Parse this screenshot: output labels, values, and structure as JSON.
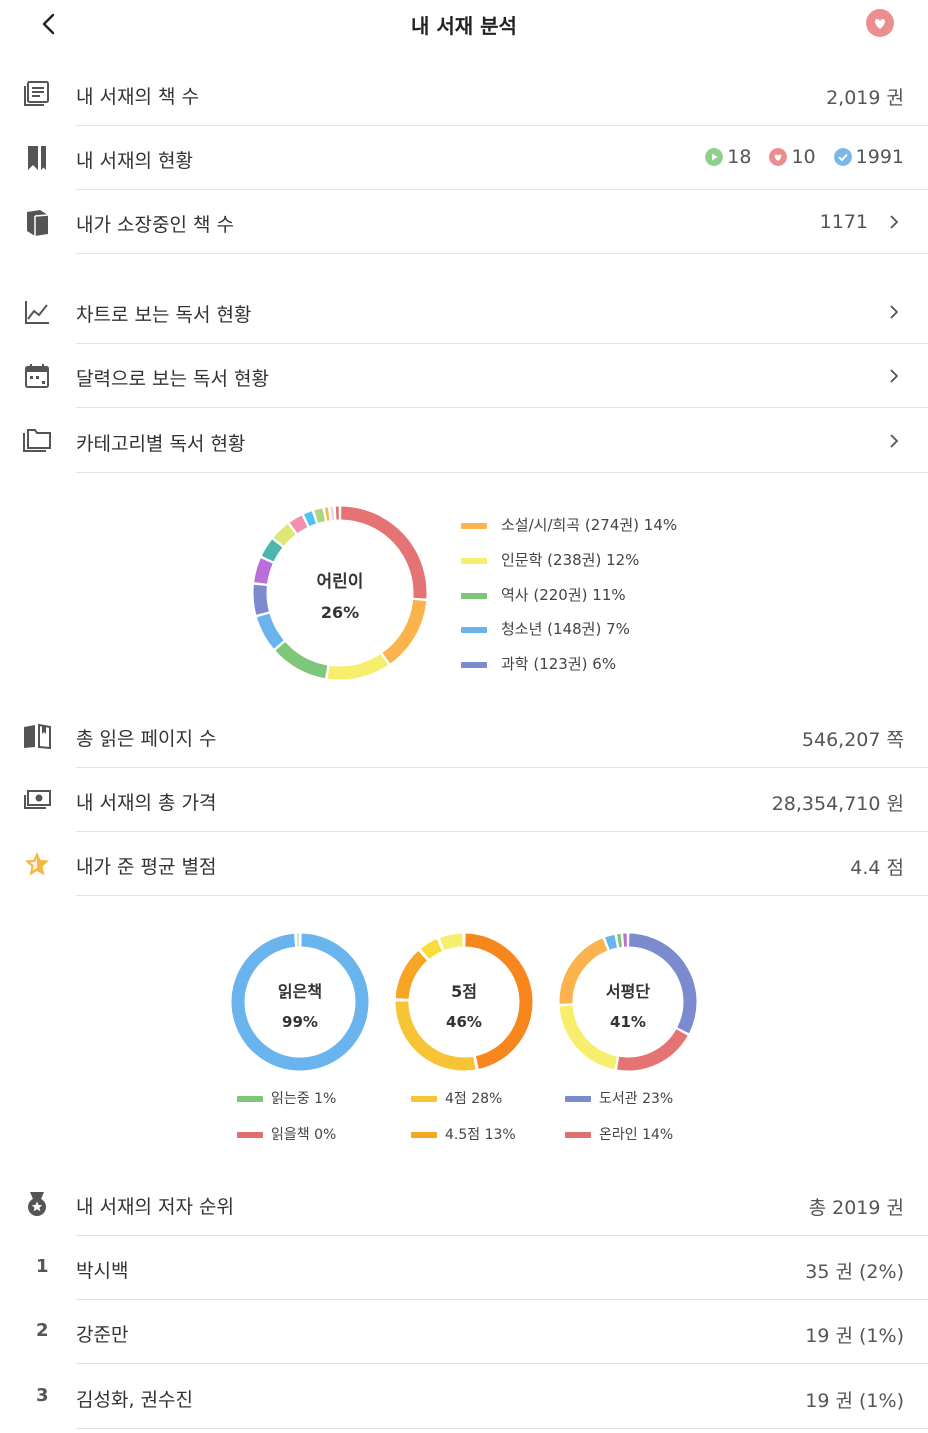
{
  "header": {
    "title": "내 서재 분석"
  },
  "summary": {
    "book_count_label": "내 서재의 책 수",
    "book_count_value": "2,019 권",
    "status_label": "내 서재의 현황",
    "status": {
      "reading": "18",
      "wish": "10",
      "done": "1991"
    },
    "owned_label": "내가 소장중인 책 수",
    "owned_value": "1171"
  },
  "menu": {
    "chart_label": "차트로 보는 독서 현황",
    "calendar_label": "달력으로 보는 독서 현황",
    "category_label": "카테고리별 독서 현황"
  },
  "category_chart": {
    "center_label": "어린이",
    "center_value": "26%",
    "legend": [
      {
        "text": "소설/시/희곡 (274권)  14%",
        "color": "#fbb44d"
      },
      {
        "text": "인문학 (238권)  12%",
        "color": "#f8ee6e"
      },
      {
        "text": "역사 (220권)  11%",
        "color": "#7ec77a"
      },
      {
        "text": "청소년 (148권)  7%",
        "color": "#6ab4ee"
      },
      {
        "text": "과학 (123권)  6%",
        "color": "#7c8ad0"
      }
    ]
  },
  "stats": {
    "pages_label": "총 읽은 페이지 수",
    "pages_value": "546,207 쪽",
    "price_label": "내 서재의 총 가격",
    "price_value": "28,354,710 원",
    "rating_label": "내가 준 평균 별점",
    "rating_value": "4.4 점"
  },
  "small_charts": {
    "read": {
      "title": "읽은책",
      "percent": "99%",
      "legend": [
        {
          "text": "읽는중  1%",
          "color": "#7ec77a"
        },
        {
          "text": "읽을책  0%",
          "color": "#e07070"
        }
      ]
    },
    "rating": {
      "title": "5점",
      "percent": "46%",
      "legend": [
        {
          "text": "4점  28%",
          "color": "#f6c434"
        },
        {
          "text": "4.5점  13%",
          "color": "#f6a623"
        }
      ]
    },
    "review": {
      "title": "서평단",
      "percent": "41%",
      "legend": [
        {
          "text": "도서관  23%",
          "color": "#7c8ad0"
        },
        {
          "text": "온라인  14%",
          "color": "#e07070"
        }
      ]
    }
  },
  "authors": {
    "label": "내 서재의 저자 순위",
    "total": "총 2019 권",
    "list": [
      {
        "rank": "1",
        "name": "박시백",
        "count": "35 권 (2%)"
      },
      {
        "rank": "2",
        "name": "강준만",
        "count": "19 권 (1%)"
      },
      {
        "rank": "3",
        "name": "김성화, 권수진",
        "count": "19 권 (1%)"
      }
    ]
  },
  "colors": {
    "category_segments": [
      "#e57373",
      "#fbb44d",
      "#f8ee6e",
      "#7ec77a",
      "#6ab4ee",
      "#7c8ad0",
      "#b86fd8",
      "#4db6ac",
      "#dce775",
      "#f48fb1",
      "#4fc3f7",
      "#aed581",
      "#ffb74d",
      "#e0e0e0",
      "#e57373"
    ],
    "read_main": "#6ab4ee",
    "rating_segments": [
      "#f7861c",
      "#f6c434",
      "#f6a623",
      "#f8dc3a",
      "#f8ee6e"
    ],
    "review_segments": [
      "#7c8ad0",
      "#e57373",
      "#f8ee6e",
      "#fbb44d",
      "#6ab4ee",
      "#7ec77a",
      "#b86fd8"
    ]
  }
}
